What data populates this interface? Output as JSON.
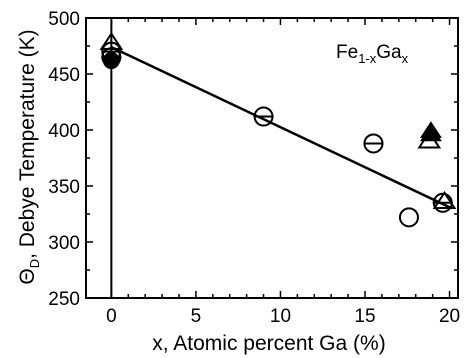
{
  "chart_data": {
    "type": "scatter",
    "title": "",
    "xlabel": "x, Atomic percent Ga (%)",
    "ylabel": "Θ_D, Debye Temperature (K)",
    "ylabel_parts": {
      "symbol": "Θ",
      "subscript": "D",
      "rest": ", Debye Temperature (K)"
    },
    "xlim": [
      -1.5,
      20.5
    ],
    "ylim": [
      250,
      500
    ],
    "xticks": [
      0,
      5,
      10,
      15,
      20
    ],
    "yticks": [
      250,
      300,
      350,
      400,
      450,
      500
    ],
    "grid": false,
    "legend": "none",
    "annotation": {
      "base1": "Fe",
      "sub1": "1-x",
      "base2": "Ga",
      "sub2": "x"
    },
    "series": [
      {
        "marker": "open-circle-errorbar",
        "x": [
          0,
          0,
          9,
          15.5,
          19.6
        ],
        "y": [
          470,
          465,
          412,
          388,
          335
        ]
      },
      {
        "marker": "open-circle",
        "x": [
          17.6
        ],
        "y": [
          322
        ]
      },
      {
        "marker": "filled-circle",
        "x": [
          0
        ],
        "y": [
          462
        ]
      },
      {
        "marker": "open-triangle",
        "x": [
          0,
          18.8,
          19.7
        ],
        "y": [
          478,
          390,
          336
        ]
      },
      {
        "marker": "filled-triangle",
        "x": [
          18.9,
          18.9
        ],
        "y": [
          396,
          399
        ]
      }
    ],
    "fit_line": {
      "x": [
        0,
        20
      ],
      "y": [
        474,
        331
      ]
    },
    "vertical_line": {
      "x": 0,
      "y": [
        250,
        500
      ]
    }
  }
}
